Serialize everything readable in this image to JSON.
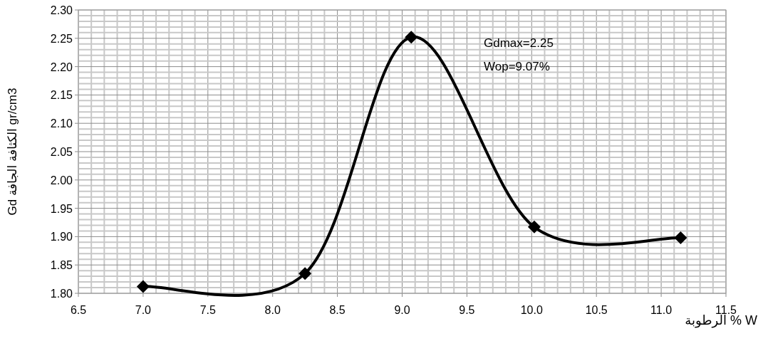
{
  "chart_data": {
    "type": "line",
    "xlabel": "الرطوبة % W",
    "ylabel": "Gd الكثافة الجافة gr/cm3",
    "annotations": [
      "Gdmax=2.25",
      "Wop=9.07%"
    ],
    "series": [
      {
        "color": "#000000",
        "x": [
          7.0,
          8.25,
          9.07,
          10.02,
          11.15
        ],
        "values": [
          1.812,
          1.835,
          2.252,
          1.917,
          1.898
        ]
      }
    ],
    "xlim": [
      6.5,
      11.5
    ],
    "xticks": [
      {
        "value": 6.5,
        "label": "6.5"
      },
      {
        "value": 7,
        "label": "7.0"
      },
      {
        "value": 7.5,
        "label": "7.5"
      },
      {
        "value": 8,
        "label": "8.0"
      },
      {
        "value": 8.5,
        "label": "8.5"
      },
      {
        "value": 9,
        "label": "9.0"
      },
      {
        "value": 9.5,
        "label": "9.5"
      },
      {
        "value": 10,
        "label": "10.0"
      },
      {
        "value": 10.5,
        "label": "10.5"
      },
      {
        "value": 11,
        "label": "11.0"
      },
      {
        "value": 11.5,
        "label": "11.5"
      }
    ],
    "ylim": [
      1.8,
      2.3
    ],
    "yticks": [
      {
        "value": 1.8,
        "label": "1.80"
      },
      {
        "value": 1.85,
        "label": "1.85"
      },
      {
        "value": 1.9,
        "label": "1.90"
      },
      {
        "value": 1.95,
        "label": "1.95"
      },
      {
        "value": 2.0,
        "label": "2.00"
      },
      {
        "value": 2.05,
        "label": "2.05"
      },
      {
        "value": 2.1,
        "label": "2.10"
      },
      {
        "value": 2.15,
        "label": "2.15"
      },
      {
        "value": 2.2,
        "label": "2.20"
      },
      {
        "value": 2.25,
        "label": "2.25"
      },
      {
        "value": 2.3,
        "label": "2.30"
      }
    ],
    "grid": true,
    "marker": "diamond",
    "line_style": "solid"
  }
}
